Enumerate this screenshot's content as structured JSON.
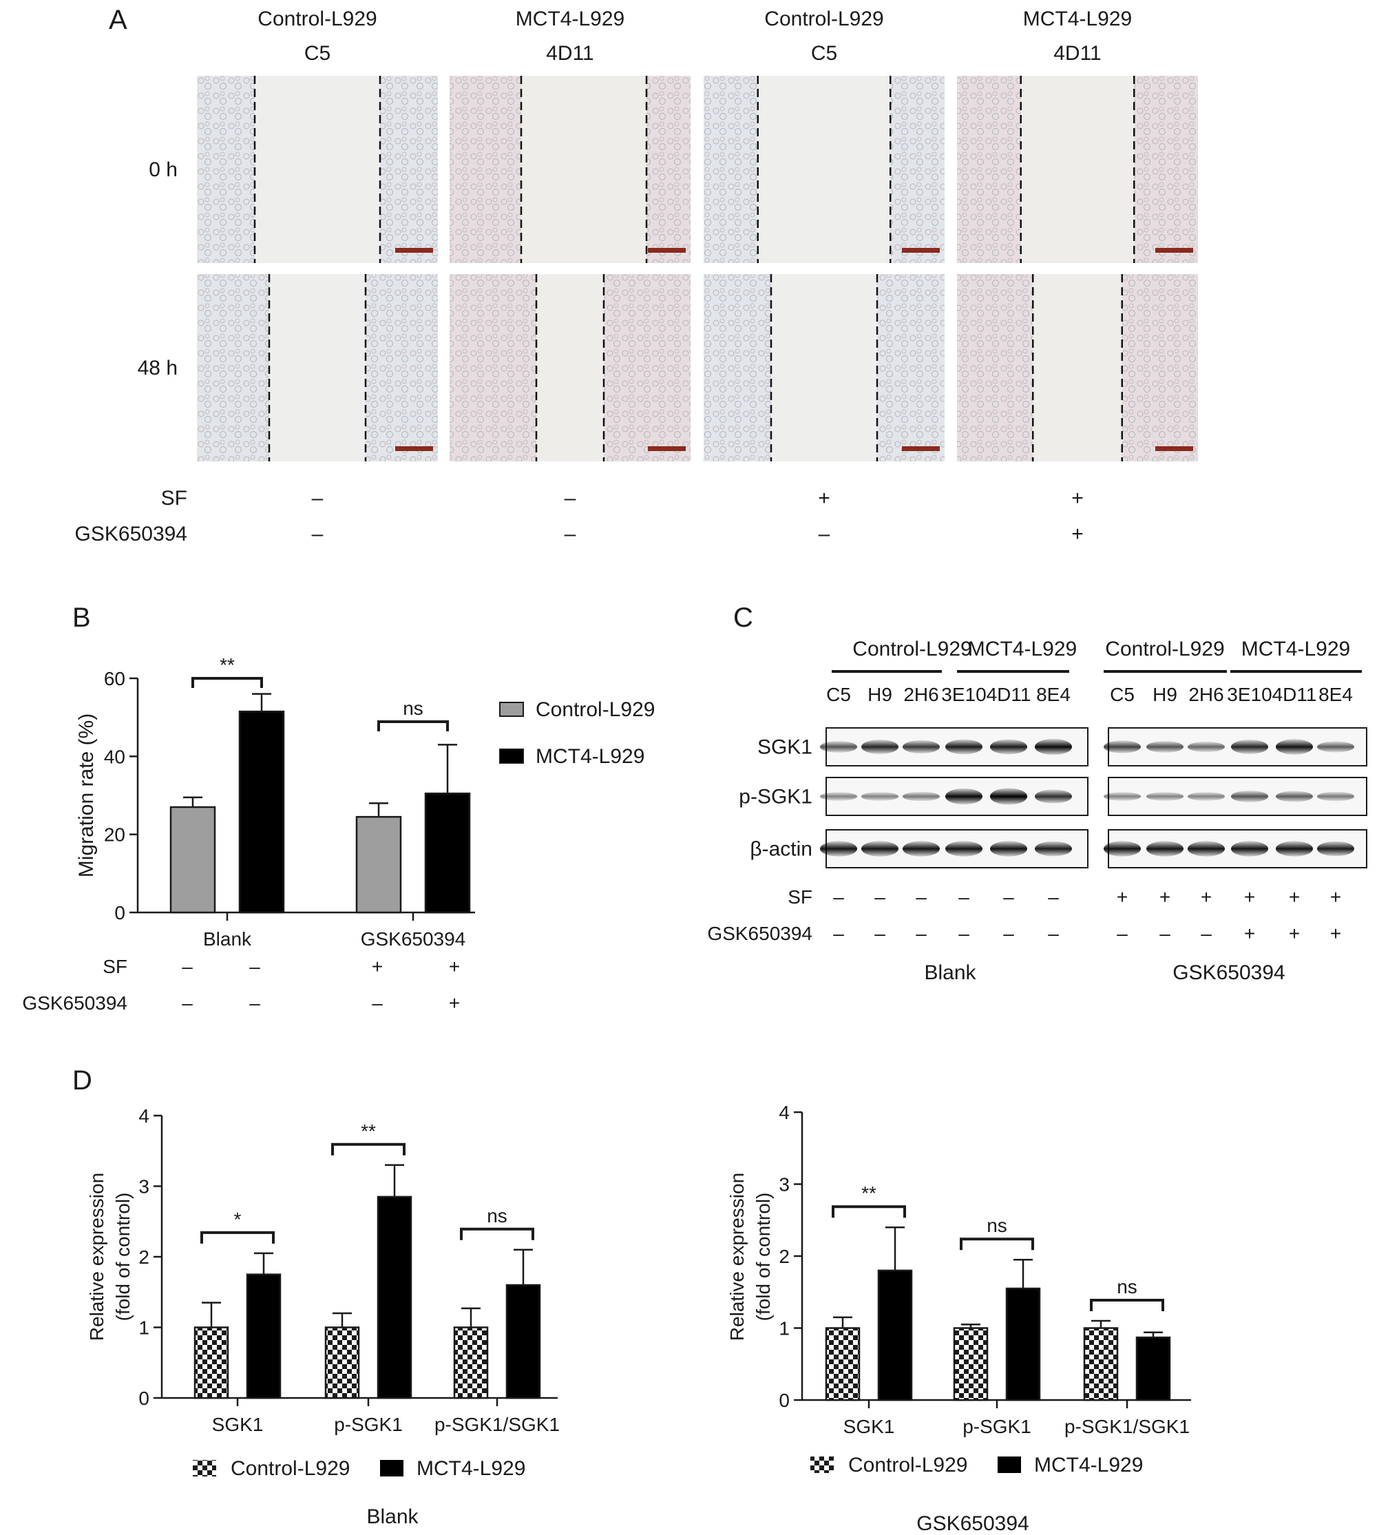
{
  "panel_a": {
    "letter": "A",
    "columns": [
      {
        "title": "Control-L929",
        "clone": "C5",
        "sf": "–",
        "gsk": "–"
      },
      {
        "title": "MCT4-L929",
        "clone": "4D11",
        "sf": "–",
        "gsk": "–"
      },
      {
        "title": "Control-L929",
        "clone": "C5",
        "sf": "+",
        "gsk": "–"
      },
      {
        "title": "MCT4-L929",
        "clone": "4D11",
        "sf": "+",
        "gsk": "+"
      }
    ],
    "rows": [
      "0 h",
      "48 h"
    ],
    "sf_label": "SF",
    "gsk_label": "GSK650394",
    "gap_fraction": {
      "0 h": [
        0.52,
        0.52,
        0.55,
        0.47
      ],
      "48 h": [
        0.4,
        0.28,
        0.44,
        0.37
      ]
    },
    "colors": {
      "cell_pink": "#e7dde0",
      "cell_blue": "#e2e5ea",
      "scalebar": "#8a2a1c"
    }
  },
  "panel_b": {
    "letter": "B",
    "sf_label": "SF",
    "gsk_label": "GSK650394",
    "sf_marks": [
      "–",
      "–",
      "+",
      "+"
    ],
    "gsk_marks": [
      "–",
      "–",
      "–",
      "+"
    ],
    "legend": [
      "Control-L929",
      "MCT4-L929"
    ],
    "sig": [
      "**",
      "ns"
    ]
  },
  "panel_c": {
    "letter": "C",
    "groups": [
      "Control-L929",
      "MCT4-L929",
      "Control-L929",
      "MCT4-L929"
    ],
    "lanes_left": [
      "C5",
      "H9",
      "2H6",
      "3E10",
      "4D11",
      "8E4"
    ],
    "lanes_right": [
      "C5",
      "H9",
      "2H6",
      "3E10",
      "4D11",
      "8E4"
    ],
    "blots": [
      "SGK1",
      "p-SGK1",
      "β-actin"
    ],
    "sf_label": "SF",
    "gsk_label": "GSK650394",
    "sf_left": [
      "–",
      "–",
      "–",
      "–",
      "–",
      "–"
    ],
    "sf_right": [
      "+",
      "+",
      "+",
      "+",
      "+",
      "+"
    ],
    "gsk_left": [
      "–",
      "–",
      "–",
      "–",
      "–",
      "–"
    ],
    "gsk_right": [
      "–",
      "–",
      "–",
      "+",
      "+",
      "+"
    ],
    "footer_left": "Blank",
    "footer_right": "GSK650394",
    "band_intensity": {
      "SGK1": [
        0.55,
        0.8,
        0.7,
        0.85,
        0.85,
        0.95,
        0.65,
        0.55,
        0.45,
        0.8,
        0.9,
        0.5
      ],
      "p-SGK1": [
        0.3,
        0.3,
        0.35,
        0.95,
        1.0,
        0.75,
        0.3,
        0.3,
        0.3,
        0.55,
        0.5,
        0.35
      ],
      "β-actin": [
        0.9,
        0.9,
        0.9,
        0.9,
        0.9,
        0.85,
        0.9,
        0.9,
        0.9,
        0.9,
        0.9,
        0.85
      ]
    }
  },
  "panel_d": {
    "letter": "D",
    "legend": [
      "Control-L929",
      "MCT4-L929"
    ],
    "footer_left": "Blank",
    "footer_right": "GSK650394",
    "sig_left": [
      "*",
      "**",
      "ns"
    ],
    "sig_right": [
      "**",
      "ns",
      "ns"
    ]
  },
  "chart_data": [
    {
      "id": "B",
      "type": "bar",
      "categories": [
        "Blank",
        "GSK650394"
      ],
      "series": [
        {
          "name": "Control-L929",
          "values": [
            27,
            24.5
          ],
          "errors": [
            2.5,
            3.5
          ],
          "color": "#9e9e9e"
        },
        {
          "name": "MCT4-L929",
          "values": [
            51.5,
            30.5
          ],
          "errors": [
            4.5,
            12.5
          ],
          "color": "#000000"
        }
      ],
      "xlabel": "",
      "ylabel": "Migration rate (%)",
      "ylim": [
        0,
        60
      ],
      "yticks": [
        0,
        20,
        40,
        60
      ],
      "legend_position": "right"
    },
    {
      "id": "D-left",
      "type": "bar",
      "title": "Blank",
      "categories": [
        "SGK1",
        "p-SGK1",
        "p-SGK1/SGK1"
      ],
      "series": [
        {
          "name": "Control-L929",
          "values": [
            1.0,
            1.0,
            1.0
          ],
          "errors": [
            0.35,
            0.2,
            0.27
          ],
          "pattern": "checker"
        },
        {
          "name": "MCT4-L929",
          "values": [
            1.75,
            2.85,
            1.6
          ],
          "errors": [
            0.3,
            0.45,
            0.5
          ],
          "color": "#000000"
        }
      ],
      "xlabel": "",
      "ylabel": "Relative expression\n(fold of control)",
      "ylim": [
        0,
        4
      ],
      "yticks": [
        0,
        1,
        2,
        3,
        4
      ],
      "legend_position": "bottom"
    },
    {
      "id": "D-right",
      "type": "bar",
      "title": "GSK650394",
      "categories": [
        "SGK1",
        "p-SGK1",
        "p-SGK1/SGK1"
      ],
      "series": [
        {
          "name": "Control-L929",
          "values": [
            1.0,
            1.0,
            1.0
          ],
          "errors": [
            0.15,
            0.05,
            0.1
          ],
          "pattern": "checker"
        },
        {
          "name": "MCT4-L929",
          "values": [
            1.8,
            1.55,
            0.87
          ],
          "errors": [
            0.6,
            0.4,
            0.07
          ],
          "color": "#000000"
        }
      ],
      "xlabel": "",
      "ylabel": "Relative expression\n(fold of control)",
      "ylim": [
        0,
        4
      ],
      "yticks": [
        0,
        1,
        2,
        3,
        4
      ],
      "legend_position": "bottom"
    }
  ]
}
